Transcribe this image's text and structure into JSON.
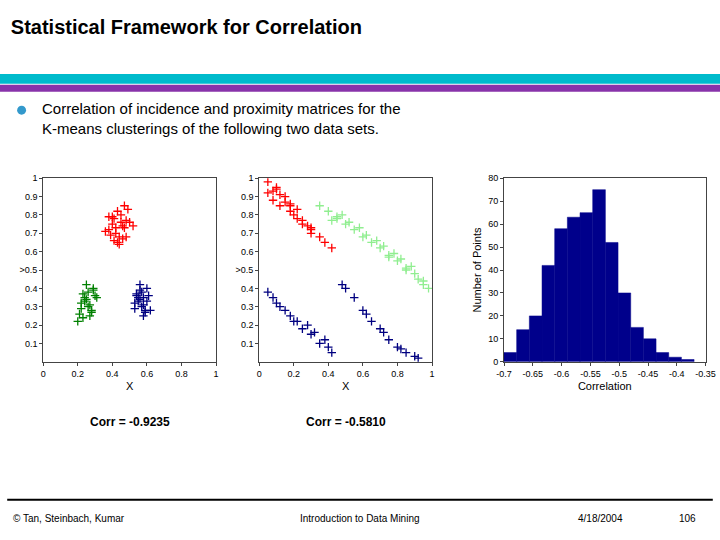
{
  "title": "Statistical Framework for Correlation",
  "subtitle": "Correlation of incidence and proximity matrices for the\nK-means clusterings of the following two data sets.",
  "annotations": [
    "© Tan, Steinbach, Kumar",
    "Introduction to Data Mining",
    "4/18/2004",
    "106"
  ],
  "chart_data": [
    {
      "type": "scatter",
      "xlabel": "X",
      "xlim": [
        0,
        1
      ],
      "xticks": [
        0,
        0.2,
        0.4,
        0.6,
        0.8,
        1
      ],
      "ylim": [
        0.0,
        1.0
      ],
      "yticks": [
        0.1,
        0.2,
        0.3,
        0.4,
        {
          "value": 0.5,
          "label": ">0.5"
        },
        0.6,
        0.7,
        0.8,
        0.9,
        1
      ],
      "grid": false,
      "marker": "plus",
      "annotations": [
        "Corr = -0.9235"
      ],
      "series": [
        {
          "color": "red",
          "x": [
            0.38,
            0.4,
            0.42,
            0.44,
            0.46,
            0.48,
            0.43,
            0.45,
            0.47,
            0.41,
            0.39,
            0.5,
            0.43,
            0.46,
            0.38,
            0.44,
            0.49,
            0.41,
            0.47,
            0.42,
            0.45,
            0.4,
            0.48,
            0.36,
            0.52
          ],
          "values": [
            0.72,
            0.75,
            0.7,
            0.68,
            0.74,
            0.77,
            0.65,
            0.8,
            0.73,
            0.78,
            0.69,
            0.76,
            0.82,
            0.67,
            0.79,
            0.64,
            0.83,
            0.66,
            0.85,
            0.73,
            0.76,
            0.79,
            0.68,
            0.71,
            0.74
          ]
        },
        {
          "color": "green",
          "x": [
            0.22,
            0.24,
            0.26,
            0.28,
            0.25,
            0.23,
            0.27,
            0.29,
            0.24,
            0.26,
            0.28,
            0.3,
            0.22,
            0.25,
            0.27,
            0.21,
            0.29,
            0.23,
            0.31,
            0.2
          ],
          "values": [
            0.32,
            0.35,
            0.3,
            0.28,
            0.34,
            0.37,
            0.25,
            0.4,
            0.33,
            0.38,
            0.27,
            0.36,
            0.29,
            0.42,
            0.31,
            0.26,
            0.39,
            0.24,
            0.35,
            0.22
          ]
        },
        {
          "color": "navy",
          "x": [
            0.53,
            0.55,
            0.57,
            0.59,
            0.56,
            0.54,
            0.58,
            0.6,
            0.55,
            0.57,
            0.59,
            0.61,
            0.53,
            0.56,
            0.58,
            0.6,
            0.54,
            0.62,
            0.56,
            0.58
          ],
          "values": [
            0.32,
            0.35,
            0.3,
            0.28,
            0.34,
            0.37,
            0.25,
            0.4,
            0.33,
            0.38,
            0.27,
            0.36,
            0.29,
            0.42,
            0.31,
            0.33,
            0.36,
            0.28,
            0.39,
            0.35
          ]
        }
      ]
    },
    {
      "type": "scatter",
      "xlabel": "X",
      "xlim": [
        0,
        1
      ],
      "xticks": [
        0,
        0.2,
        0.4,
        0.6,
        0.8,
        1
      ],
      "ylim": [
        0.0,
        1.0
      ],
      "yticks": [
        0.1,
        0.2,
        0.3,
        0.4,
        {
          "value": 0.5,
          "label": ">0.5"
        },
        0.6,
        0.7,
        0.8,
        0.9,
        1
      ],
      "grid": false,
      "marker": "plus",
      "annotations": [
        "Corr = -0.5810"
      ],
      "series": [
        {
          "color": "red",
          "x": [
            0.05,
            0.08,
            0.12,
            0.15,
            0.18,
            0.22,
            0.1,
            0.2,
            0.25,
            0.3,
            0.08,
            0.15,
            0.22,
            0.3,
            0.35,
            0.18,
            0.12,
            0.25,
            0.05,
            0.28,
            0.38,
            0.42,
            0.1,
            0.18,
            0.3
          ],
          "values": [
            0.92,
            0.88,
            0.85,
            0.9,
            0.82,
            0.78,
            0.95,
            0.8,
            0.75,
            0.72,
            0.93,
            0.87,
            0.83,
            0.7,
            0.68,
            0.85,
            0.91,
            0.77,
            0.98,
            0.74,
            0.65,
            0.62,
            0.94,
            0.86,
            0.73
          ]
        },
        {
          "color": "lightgreen",
          "x": [
            0.4,
            0.5,
            0.6,
            0.7,
            0.8,
            0.9,
            0.95,
            0.45,
            0.55,
            0.65,
            0.75,
            0.85,
            0.92,
            0.48,
            0.58,
            0.68,
            0.78,
            0.88,
            0.52,
            0.72,
            0.82,
            0.62,
            0.42,
            0.98,
            0.35,
            0.45,
            0.75,
            0.85,
            0.95
          ],
          "values": [
            0.82,
            0.75,
            0.68,
            0.62,
            0.55,
            0.48,
            0.42,
            0.79,
            0.72,
            0.65,
            0.58,
            0.5,
            0.45,
            0.8,
            0.73,
            0.66,
            0.59,
            0.52,
            0.76,
            0.63,
            0.56,
            0.69,
            0.77,
            0.4,
            0.85,
            0.78,
            0.57,
            0.51,
            0.44
          ]
        },
        {
          "color": "navy",
          "x": [
            0.05,
            0.1,
            0.15,
            0.2,
            0.25,
            0.3,
            0.35,
            0.4,
            0.08,
            0.18,
            0.28,
            0.38,
            0.12,
            0.22,
            0.32,
            0.42,
            0.48,
            0.55,
            0.6,
            0.65,
            0.7,
            0.75,
            0.8,
            0.85,
            0.9,
            0.5,
            0.62,
            0.72,
            0.82,
            0.92
          ],
          "values": [
            0.38,
            0.32,
            0.28,
            0.22,
            0.18,
            0.15,
            0.1,
            0.08,
            0.35,
            0.25,
            0.2,
            0.12,
            0.3,
            0.22,
            0.16,
            0.05,
            0.42,
            0.35,
            0.28,
            0.22,
            0.18,
            0.12,
            0.08,
            0.05,
            0.03,
            0.4,
            0.26,
            0.16,
            0.07,
            0.02
          ]
        }
      ]
    },
    {
      "type": "histogram",
      "xlabel": "Correlation",
      "ylabel": "Number of Points",
      "color": "#00008B",
      "bins": [
        -0.7,
        -0.678,
        -0.656,
        -0.634,
        -0.612,
        -0.59,
        -0.568,
        -0.546,
        -0.524,
        -0.502,
        -0.48,
        -0.458,
        -0.436,
        -0.414,
        -0.392,
        -0.37
      ],
      "values": [
        4,
        14,
        20,
        42,
        58,
        63,
        65,
        75,
        52,
        30,
        15,
        10,
        4,
        2,
        1
      ],
      "xlim": [
        -0.7,
        -0.35
      ],
      "xticks": [
        -0.7,
        -0.65,
        -0.6,
        -0.55,
        -0.5,
        -0.45,
        -0.4,
        -0.35
      ],
      "ylim": [
        0,
        80
      ],
      "yticks": [
        0,
        10,
        20,
        30,
        40,
        50,
        60,
        70,
        80
      ],
      "grid": false
    }
  ]
}
